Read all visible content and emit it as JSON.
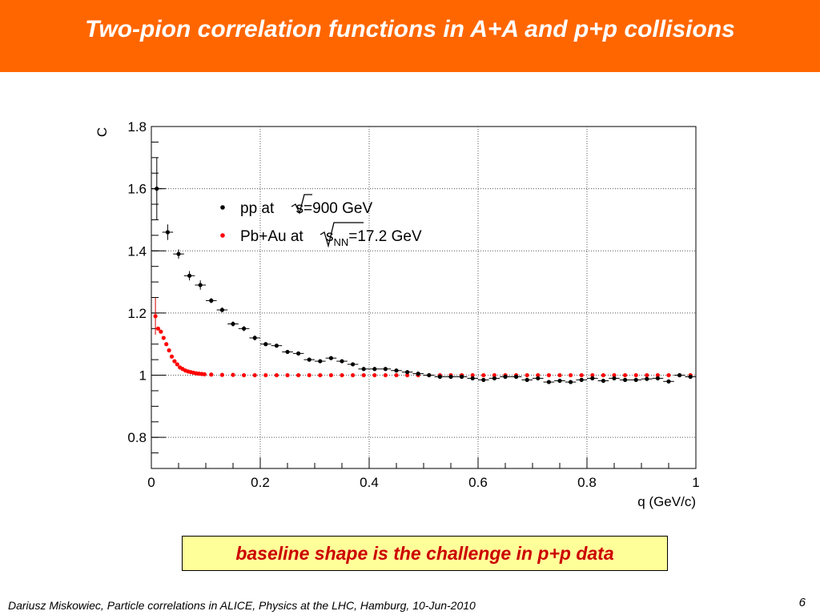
{
  "slide": {
    "title": "Two-pion correlation functions in A+A and p+p collisions",
    "callout": "baseline shape is the challenge in p+p data",
    "footer": "Dariusz Miskowiec, Particle correlations in ALICE, Physics at the LHC, Hamburg, 10-Jun-2010",
    "page_number": "6"
  },
  "colors": {
    "header": "#ff6600",
    "pp": "#000000",
    "pbau": "#ff0000",
    "callout_bg": "#ffff99",
    "callout_text": "#cc0000"
  },
  "chart_data": {
    "type": "scatter",
    "xlabel": "q (GeV/c)",
    "ylabel": "C",
    "xlim": [
      0,
      1
    ],
    "ylim": [
      0.7,
      1.8
    ],
    "xticks": [
      "0",
      "0.2",
      "0.4",
      "0.6",
      "0.8",
      "1"
    ],
    "yticks": [
      "0.8",
      "1",
      "1.2",
      "1.4",
      "1.6",
      "1.8"
    ],
    "grid": true,
    "legend_position": "top-left",
    "series": [
      {
        "name_parts": [
          "pp at ",
          "s",
          "=900 GeV"
        ],
        "color": "#000000",
        "x": [
          0.01,
          0.03,
          0.05,
          0.07,
          0.09,
          0.11,
          0.13,
          0.15,
          0.17,
          0.19,
          0.21,
          0.23,
          0.25,
          0.27,
          0.29,
          0.31,
          0.33,
          0.35,
          0.37,
          0.39,
          0.41,
          0.43,
          0.45,
          0.47,
          0.49,
          0.51,
          0.53,
          0.55,
          0.57,
          0.59,
          0.61,
          0.63,
          0.65,
          0.67,
          0.69,
          0.71,
          0.73,
          0.75,
          0.77,
          0.79,
          0.81,
          0.83,
          0.85,
          0.87,
          0.89,
          0.91,
          0.93,
          0.95,
          0.97,
          0.99
        ],
        "y": [
          1.6,
          1.46,
          1.39,
          1.32,
          1.29,
          1.24,
          1.21,
          1.165,
          1.15,
          1.12,
          1.1,
          1.095,
          1.075,
          1.07,
          1.05,
          1.045,
          1.055,
          1.045,
          1.035,
          1.02,
          1.02,
          1.02,
          1.015,
          1.01,
          1.005,
          1.0,
          0.995,
          0.995,
          0.995,
          0.99,
          0.985,
          0.99,
          0.995,
          0.995,
          0.985,
          0.99,
          0.978,
          0.982,
          0.978,
          0.985,
          0.99,
          0.982,
          0.99,
          0.985,
          0.985,
          0.988,
          0.99,
          0.98,
          1.0,
          0.995
        ]
      },
      {
        "name_parts": [
          "Pb+Au at ",
          "s",
          "NN",
          "=17.2 GeV"
        ],
        "color": "#ff0000",
        "x": [
          0.0075,
          0.0125,
          0.0175,
          0.0225,
          0.0275,
          0.0325,
          0.0375,
          0.0425,
          0.0475,
          0.0525,
          0.0575,
          0.0625,
          0.0675,
          0.0725,
          0.0775,
          0.0825,
          0.0875,
          0.0925,
          0.0975,
          0.11,
          0.13,
          0.15,
          0.17,
          0.19,
          0.21,
          0.23,
          0.25,
          0.27,
          0.29,
          0.31,
          0.33,
          0.35,
          0.37,
          0.39,
          0.41,
          0.43,
          0.45,
          0.47,
          0.49,
          0.51,
          0.53,
          0.55,
          0.57,
          0.59,
          0.61,
          0.63,
          0.65,
          0.67,
          0.69,
          0.71,
          0.73,
          0.75,
          0.77,
          0.79,
          0.81,
          0.83,
          0.85,
          0.87,
          0.89,
          0.91,
          0.93,
          0.95,
          0.97,
          0.99
        ],
        "y": [
          1.19,
          1.15,
          1.14,
          1.12,
          1.1,
          1.08,
          1.06,
          1.045,
          1.035,
          1.025,
          1.02,
          1.015,
          1.012,
          1.01,
          1.008,
          1.006,
          1.005,
          1.004,
          1.003,
          1.002,
          1.001,
          1.001,
          1.0,
          1.0,
          1.0,
          1.0,
          1.0,
          1.0,
          1.0,
          1.0,
          1.0,
          1.0,
          1.0,
          1.0,
          1.0,
          1.0,
          1.0,
          1.0,
          1.0,
          1.0,
          1.0,
          1.0,
          1.0,
          1.0,
          1.0,
          1.0,
          1.0,
          1.0,
          1.0,
          1.0,
          1.0,
          1.0,
          1.0,
          1.0,
          1.0,
          1.0,
          1.0,
          1.0,
          1.0,
          1.0,
          1.0,
          1.0,
          1.0,
          1.0
        ]
      }
    ]
  }
}
